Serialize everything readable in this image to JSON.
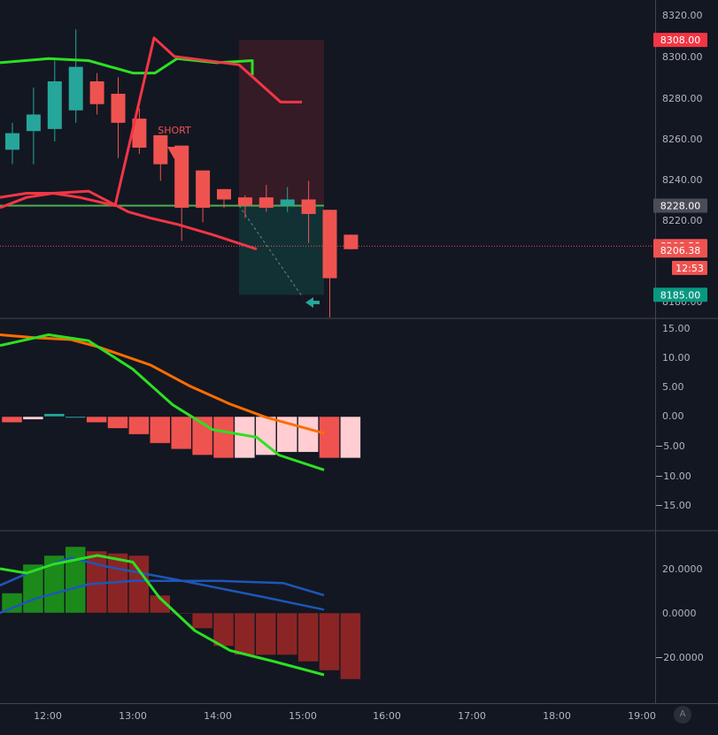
{
  "theme": {
    "background": "#131722",
    "axis_text": "#b2b5be",
    "bull": "#26a69a",
    "bear": "#ef5350",
    "grid_divider": "#434651"
  },
  "price_axis": {
    "labels": [
      "8320.00",
      "8300.00",
      "8280.00",
      "8260.00",
      "8240.00",
      "8220.00",
      "8180.00"
    ]
  },
  "price_badges": [
    {
      "value": "8308.00",
      "price": 8308,
      "color": "#f23645"
    },
    {
      "value": "8228.00",
      "price": 8228,
      "color": "#4a4d57"
    },
    {
      "value": "8208.50",
      "price": 8208.5,
      "color": "#ef5350"
    },
    {
      "value": "8206.38",
      "price": 8206.38,
      "color": "#ef5350"
    },
    {
      "value": "12:53",
      "price": 8198,
      "color": "#ef5350"
    },
    {
      "value": "8185.00",
      "price": 8185,
      "color": "#089981"
    }
  ],
  "short_label": "SHORT",
  "time_axis": {
    "labels": [
      "12:00",
      "13:00",
      "14:00",
      "15:00",
      "16:00",
      "17:00",
      "18:00",
      "19:00"
    ]
  },
  "macd_axis": {
    "labels": [
      "15.00",
      "10.00",
      "5.00",
      "0.00",
      "−5.00",
      "−10.00",
      "−15.00"
    ]
  },
  "osc_axis": {
    "labels": [
      "20.0000",
      "0.0000",
      "−20.0000"
    ]
  },
  "footer_button": "A",
  "chart_data": [
    {
      "type": "candlestick",
      "x_unit": "time (15-min bars)",
      "ylim": [
        8170,
        8325
      ],
      "candles": [
        {
          "time": "11:30",
          "open": 8255,
          "high": 8268,
          "low": 8248,
          "close": 8263
        },
        {
          "time": "11:45",
          "open": 8264,
          "high": 8285,
          "low": 8248,
          "close": 8272
        },
        {
          "time": "12:00",
          "open": 8265,
          "high": 8298,
          "low": 8259,
          "close": 8288
        },
        {
          "time": "12:15",
          "open": 8274,
          "high": 8313,
          "low": 8268,
          "close": 8295
        },
        {
          "time": "12:30",
          "open": 8288,
          "high": 8292,
          "low": 8272,
          "close": 8277
        },
        {
          "time": "12:45",
          "open": 8282,
          "high": 8290,
          "low": 8251,
          "close": 8268
        },
        {
          "time": "13:00",
          "open": 8270,
          "high": 8275,
          "low": 8253,
          "close": 8256
        },
        {
          "time": "13:15",
          "open": 8262,
          "high": 8262,
          "low": 8240,
          "close": 8248
        },
        {
          "time": "13:30",
          "open": 8257,
          "high": 8257,
          "low": 8211,
          "close": 8227
        },
        {
          "time": "13:45",
          "open": 8245,
          "high": 8245,
          "low": 8220,
          "close": 8227
        },
        {
          "time": "14:00",
          "open": 8236,
          "high": 8236,
          "low": 8227,
          "close": 8231
        },
        {
          "time": "14:15",
          "open": 8232,
          "high": 8233,
          "low": 8222,
          "close": 8228
        },
        {
          "time": "14:30",
          "open": 8232,
          "high": 8238,
          "low": 8225,
          "close": 8227
        },
        {
          "time": "14:45",
          "open": 8228,
          "high": 8237,
          "low": 8225,
          "close": 8231
        },
        {
          "time": "15:00",
          "open": 8231,
          "high": 8240,
          "low": 8210,
          "close": 8224
        },
        {
          "time": "15:15",
          "open": 8226,
          "high": 8226,
          "low": 8174,
          "close": 8193
        },
        {
          "time": "15:30",
          "open": 8214,
          "high": 8214,
          "low": 8207,
          "close": 8207
        }
      ],
      "indicators": [
        {
          "color": "#2de022",
          "values": [
            8297,
            8299,
            8298,
            8292,
            8292,
            8299,
            8297,
            8291
          ]
        },
        {
          "color": "#f23645",
          "values": [
            8232,
            8234,
            8234,
            8232,
            8228,
            8309,
            8300,
            8296,
            8278,
            8278
          ]
        },
        {
          "color": "#f23645",
          "values": [
            8227,
            8232,
            8234,
            8235,
            8225,
            8222,
            8219,
            8214,
            8207
          ]
        }
      ],
      "horizontal_line": {
        "price": 8228,
        "color": "#4caf50"
      },
      "trade_box": {
        "entry": 8228,
        "stop": 8308,
        "target": 8185
      },
      "current_price": 8208.5
    },
    {
      "type": "macd",
      "ylim": [
        -20,
        18
      ],
      "histogram": [
        -1,
        -0.5,
        0.5,
        0,
        -1,
        -2,
        -3,
        -4.5,
        -5.5,
        -6.5,
        -7,
        -7,
        -6.5,
        -6,
        -6,
        -7,
        -7
      ],
      "lines": [
        {
          "color": "#ff6d00",
          "values": [
            13.8,
            13.3,
            13,
            11.8,
            8.7,
            5.1,
            2.1,
            -0.1,
            -2.8
          ]
        },
        {
          "color": "#2de022",
          "values": [
            12,
            13.8,
            12.8,
            8,
            2,
            -2.2,
            -3.5,
            -6.5,
            -9
          ]
        }
      ]
    },
    {
      "type": "oscillator",
      "ylim": [
        -33,
        36
      ],
      "histogram": [
        9,
        22,
        26,
        30,
        28,
        27,
        26,
        8,
        0,
        -7,
        -15,
        -19,
        -19,
        -19,
        -22,
        -26,
        -30
      ],
      "lines": [
        {
          "color": "#1d56b8",
          "values": [
            12.5,
            19.5,
            25,
            21,
            15,
            7,
            1.5
          ]
        },
        {
          "color": "#1d56b8",
          "values": [
            0,
            6.5,
            13,
            14.5,
            14.5,
            14.5,
            13.5,
            8
          ]
        },
        {
          "color": "#2de022",
          "values": [
            20,
            18,
            22,
            26,
            23,
            7,
            -8,
            -17,
            -22,
            -28
          ]
        }
      ]
    }
  ]
}
